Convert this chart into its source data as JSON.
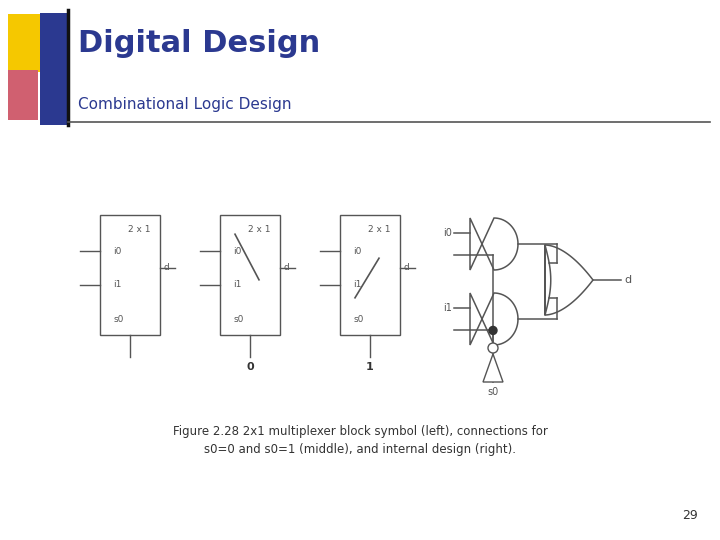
{
  "title": "Digital Design",
  "subtitle": "Combinational Logic Design",
  "title_color": "#2B3990",
  "subtitle_color": "#2B3990",
  "background_color": "#FFFFFF",
  "caption_line1": "Figure 2.28 2x1 multiplexer block symbol (left), connections for",
  "caption_line2": "s0=0 and s0=1 (middle), and internal design (right).",
  "page_number": "29"
}
